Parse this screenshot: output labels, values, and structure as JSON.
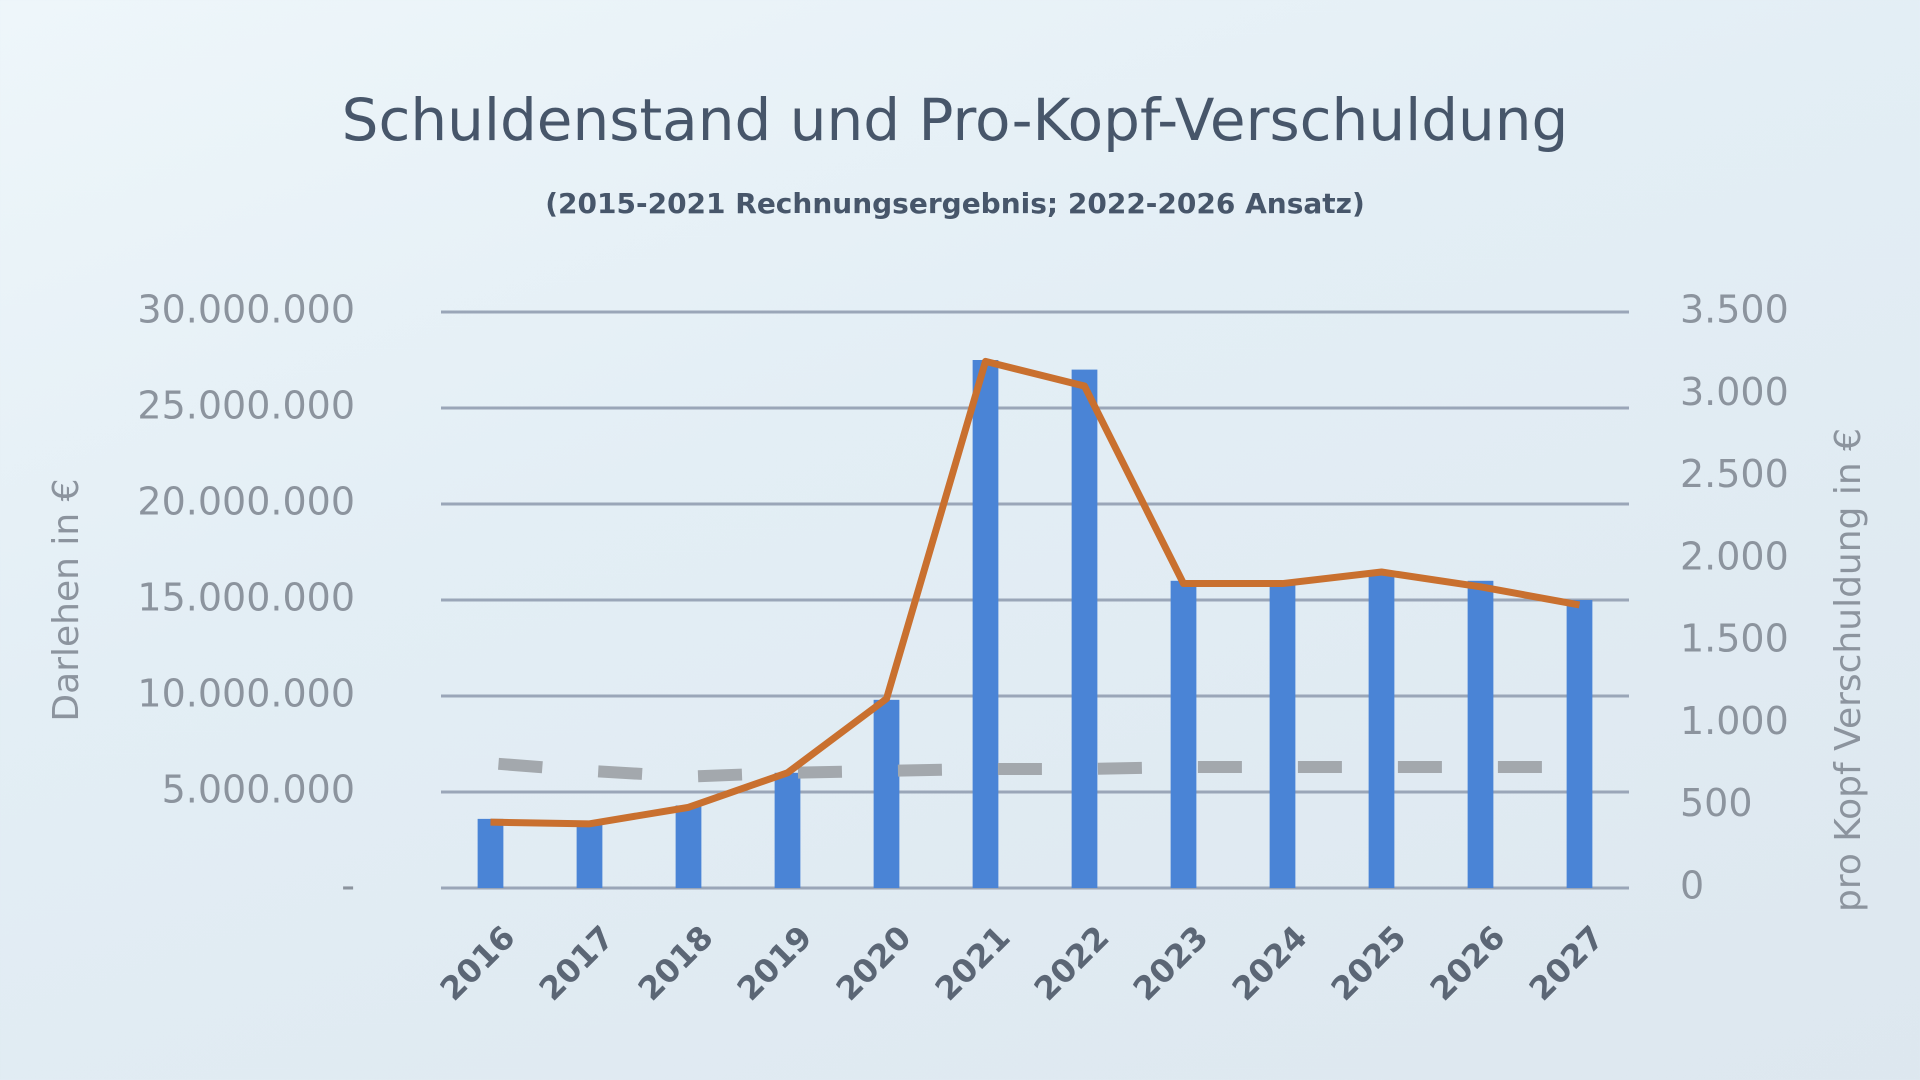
{
  "chart_data": {
    "type": "bar",
    "title": "Schuldenstand und Pro-Kopf-Verschuldung",
    "subtitle": "(2015-2021 Rechnungsergebnis; 2022-2026 Ansatz)",
    "y_label": "Darlehen in €",
    "y2_label": "pro Kopf Verschuldung in €",
    "categories": [
      "2016",
      "2017",
      "2018",
      "2019",
      "2020",
      "2021",
      "2022",
      "2023",
      "2024",
      "2025",
      "2026",
      "2027"
    ],
    "series": [
      {
        "type": "bar",
        "axis": "y",
        "color": "#4a84d6",
        "values": [
          3600000,
          3300000,
          4300000,
          6000000,
          9800000,
          27500000,
          27000000,
          16000000,
          16000000,
          16500000,
          16000000,
          15000000
        ]
      },
      {
        "type": "line",
        "axis": "y",
        "color": "#a3a8ad",
        "line_style": "dashed",
        "values": [
          6500000,
          6100000,
          5800000,
          6000000,
          6100000,
          6200000,
          6200000,
          6300000,
          6300000,
          6300000,
          6300000,
          6300000
        ]
      },
      {
        "type": "line",
        "axis": "y2",
        "color": "#c9702f",
        "line_style": "solid",
        "values": [
          400,
          390,
          490,
          700,
          1150,
          3200,
          3050,
          1850,
          1850,
          1920,
          1830,
          1720
        ]
      }
    ],
    "ylim": [
      0,
      30000000
    ],
    "yticks": [
      {
        "value": 0,
        "label": "-"
      },
      {
        "value": 5000000,
        "label": "5.000.000"
      },
      {
        "value": 10000000,
        "label": "10.000.000"
      },
      {
        "value": 15000000,
        "label": "15.000.000"
      },
      {
        "value": 20000000,
        "label": "20.000.000"
      },
      {
        "value": 25000000,
        "label": "25.000.000"
      },
      {
        "value": 30000000,
        "label": "30.000.000"
      }
    ],
    "y2lim": [
      0,
      3500
    ],
    "y2ticks": [
      0,
      {
        "value": 500,
        "label": "500"
      },
      {
        "value": 1000,
        "label": "1.000"
      },
      {
        "value": 1500,
        "label": "1.500"
      },
      {
        "value": 2000,
        "label": "2.000"
      },
      {
        "value": 2500,
        "label": "2.500"
      },
      {
        "value": 3000,
        "label": "3.000"
      },
      {
        "value": 3500,
        "label": "3.500"
      }
    ],
    "grid": true
  }
}
